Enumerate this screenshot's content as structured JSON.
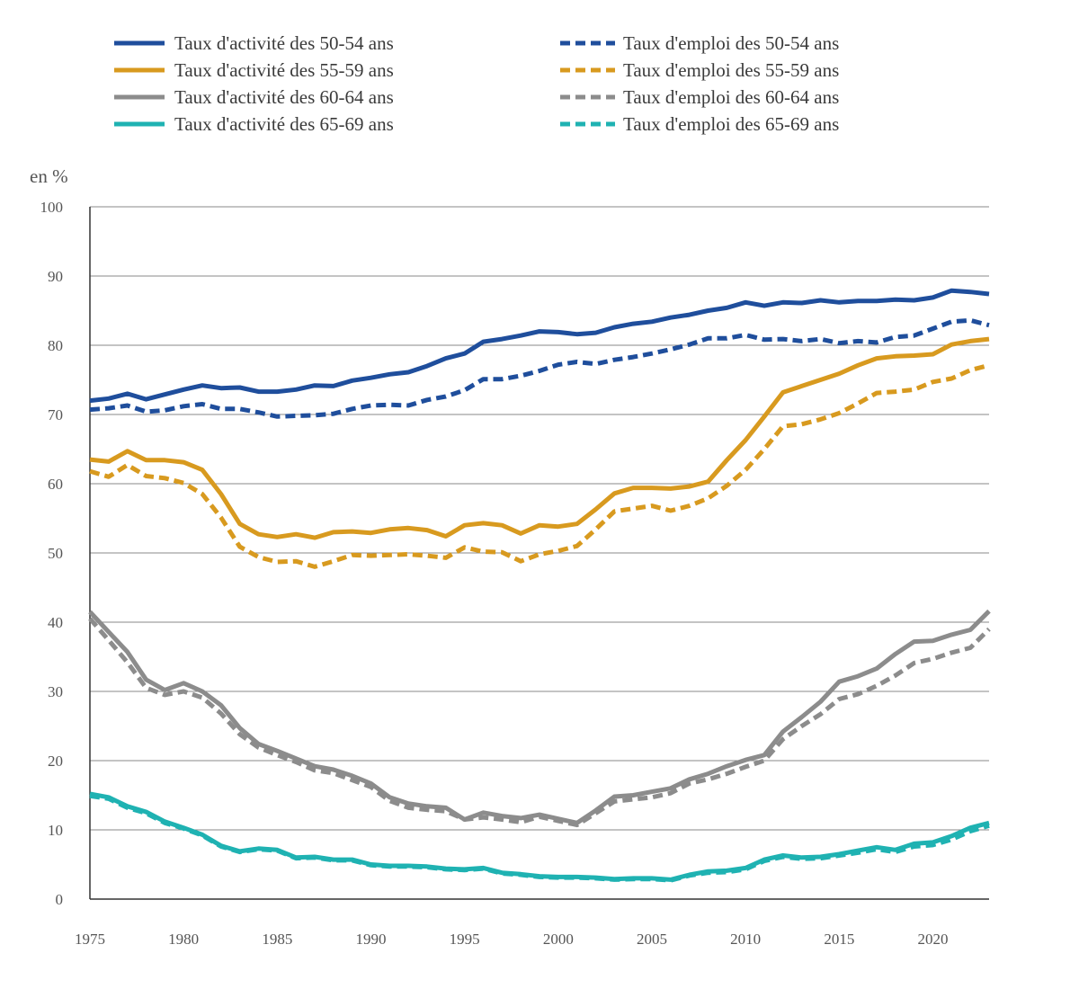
{
  "chart_data": {
    "type": "line",
    "title": "",
    "ylabel": "en %",
    "xlabel": "",
    "ylim": [
      0,
      100
    ],
    "xlim": [
      1975,
      2023
    ],
    "yticks": [
      0,
      10,
      20,
      30,
      40,
      50,
      60,
      70,
      80,
      90,
      100
    ],
    "xticks": [
      1975,
      1980,
      1985,
      1990,
      1995,
      2000,
      2005,
      2010,
      2015,
      2020
    ],
    "grid": "horizontal",
    "legend_position": "top",
    "x": [
      1975,
      1976,
      1977,
      1978,
      1979,
      1980,
      1981,
      1982,
      1983,
      1984,
      1985,
      1986,
      1987,
      1988,
      1989,
      1990,
      1991,
      1992,
      1993,
      1994,
      1995,
      1996,
      1997,
      1998,
      1999,
      2000,
      2001,
      2002,
      2003,
      2004,
      2005,
      2006,
      2007,
      2008,
      2009,
      2010,
      2011,
      2012,
      2013,
      2014,
      2015,
      2016,
      2017,
      2018,
      2019,
      2020,
      2021,
      2022,
      2023
    ],
    "series": [
      {
        "name": "Taux d'activité des 50-54 ans",
        "color": "#1f4e9c",
        "dash": "solid",
        "values": [
          72.0,
          72.3,
          73.0,
          72.2,
          72.9,
          73.6,
          74.2,
          73.8,
          73.9,
          73.3,
          73.3,
          73.6,
          74.2,
          74.1,
          74.9,
          75.3,
          75.8,
          76.1,
          77.0,
          78.1,
          78.8,
          80.5,
          80.9,
          81.4,
          82.0,
          81.9,
          81.6,
          81.8,
          82.6,
          83.1,
          83.4,
          84.0,
          84.4,
          85.0,
          85.4,
          86.2,
          85.7,
          86.2,
          86.1,
          86.5,
          86.2,
          86.4,
          86.4,
          86.6,
          86.5,
          86.9,
          87.9,
          87.7,
          87.4
        ]
      },
      {
        "name": "Taux d'emploi des 50-54 ans",
        "color": "#1f4e9c",
        "dash": "dashed",
        "values": [
          70.7,
          70.9,
          71.3,
          70.4,
          70.6,
          71.2,
          71.5,
          70.8,
          70.8,
          70.3,
          69.7,
          69.8,
          69.9,
          70.1,
          70.8,
          71.3,
          71.4,
          71.3,
          72.1,
          72.6,
          73.5,
          75.1,
          75.1,
          75.6,
          76.3,
          77.2,
          77.6,
          77.3,
          77.9,
          78.3,
          78.8,
          79.4,
          80.1,
          81.0,
          81.0,
          81.5,
          80.8,
          80.9,
          80.6,
          80.9,
          80.3,
          80.6,
          80.4,
          81.2,
          81.4,
          82.4,
          83.4,
          83.6,
          82.9
        ]
      },
      {
        "name": "Taux d'activité des 55-59 ans",
        "color": "#d89a1f",
        "dash": "solid",
        "values": [
          63.5,
          63.2,
          64.7,
          63.4,
          63.4,
          63.1,
          62.0,
          58.5,
          54.2,
          52.7,
          52.3,
          52.7,
          52.2,
          53.0,
          53.1,
          52.9,
          53.4,
          53.6,
          53.3,
          52.4,
          54.0,
          54.3,
          54.0,
          52.8,
          54.0,
          53.8,
          54.2,
          56.3,
          58.6,
          59.4,
          59.4,
          59.3,
          59.6,
          60.3,
          63.4,
          66.3,
          69.7,
          73.2,
          74.1,
          75.0,
          75.9,
          77.1,
          78.1,
          78.4,
          78.5,
          78.7,
          80.1,
          80.6,
          80.9
        ]
      },
      {
        "name": "Taux d'emploi des 55-59 ans",
        "color": "#d89a1f",
        "dash": "dashed",
        "values": [
          61.8,
          61.0,
          62.7,
          61.1,
          60.8,
          60.1,
          58.5,
          55.1,
          50.9,
          49.4,
          48.7,
          48.8,
          48.0,
          48.8,
          49.7,
          49.6,
          49.7,
          49.8,
          49.6,
          49.3,
          50.8,
          50.2,
          50.1,
          48.8,
          49.8,
          50.3,
          51.0,
          53.4,
          56.0,
          56.4,
          56.8,
          56.1,
          56.8,
          57.9,
          59.7,
          62.0,
          65.0,
          68.3,
          68.6,
          69.3,
          70.2,
          71.6,
          73.1,
          73.3,
          73.6,
          74.7,
          75.2,
          76.4,
          77.1
        ]
      },
      {
        "name": "Taux d'activité des 60-64 ans",
        "color": "#8c8c8c",
        "dash": "solid",
        "values": [
          41.5,
          38.6,
          35.7,
          31.7,
          30.2,
          31.2,
          30.0,
          28.0,
          24.7,
          22.4,
          21.4,
          20.3,
          19.2,
          18.7,
          17.8,
          16.7,
          14.7,
          13.8,
          13.4,
          13.2,
          11.5,
          12.5,
          12.0,
          11.7,
          12.2,
          11.6,
          11.0,
          12.8,
          14.8,
          15.0,
          15.5,
          16.0,
          17.3,
          18.1,
          19.2,
          20.1,
          20.8,
          24.2,
          26.3,
          28.5,
          31.4,
          32.2,
          33.3,
          35.4,
          37.2,
          37.3,
          38.2,
          38.9,
          41.6
        ]
      },
      {
        "name": "Taux d'emploi des 60-64 ans",
        "color": "#8c8c8c",
        "dash": "dashed",
        "values": [
          40.5,
          37.4,
          34.2,
          30.5,
          29.5,
          30.0,
          29.1,
          26.8,
          23.8,
          21.9,
          20.8,
          19.8,
          18.6,
          18.2,
          17.2,
          16.2,
          14.2,
          13.2,
          12.9,
          12.7,
          11.5,
          11.8,
          11.5,
          11.1,
          11.9,
          11.3,
          10.7,
          12.4,
          14.1,
          14.4,
          14.7,
          15.3,
          16.7,
          17.3,
          18.1,
          19.1,
          20.0,
          23.1,
          25.0,
          26.7,
          28.9,
          29.6,
          30.8,
          32.3,
          34.1,
          34.7,
          35.6,
          36.3,
          39.0
        ]
      },
      {
        "name": "Taux d'activité des 65-69 ans",
        "color": "#1fb2b2",
        "dash": "solid",
        "values": [
          15.2,
          14.7,
          13.4,
          12.6,
          11.2,
          10.3,
          9.3,
          7.7,
          6.9,
          7.3,
          7.1,
          6.0,
          6.1,
          5.7,
          5.7,
          5.0,
          4.8,
          4.8,
          4.7,
          4.4,
          4.3,
          4.5,
          3.8,
          3.6,
          3.3,
          3.2,
          3.2,
          3.1,
          2.9,
          3.0,
          3.0,
          2.8,
          3.5,
          4.0,
          4.1,
          4.5,
          5.7,
          6.3,
          6.0,
          6.1,
          6.5,
          7.0,
          7.5,
          7.1,
          8.0,
          8.2,
          9.1,
          10.3,
          11.0
        ]
      },
      {
        "name": "Taux d'emploi des 65-69 ans",
        "color": "#1fb2b2",
        "dash": "dashed",
        "values": [
          14.9,
          14.5,
          13.2,
          12.4,
          11.0,
          10.2,
          9.2,
          7.6,
          6.8,
          7.2,
          7.0,
          5.9,
          6.0,
          5.6,
          5.6,
          4.9,
          4.7,
          4.7,
          4.6,
          4.3,
          4.2,
          4.4,
          3.7,
          3.5,
          3.2,
          3.1,
          3.1,
          3.0,
          2.8,
          2.9,
          2.9,
          2.7,
          3.4,
          3.8,
          3.9,
          4.3,
          5.5,
          6.1,
          5.8,
          5.9,
          6.3,
          6.7,
          7.2,
          6.8,
          7.6,
          7.8,
          8.6,
          9.8,
          10.6
        ]
      }
    ]
  }
}
